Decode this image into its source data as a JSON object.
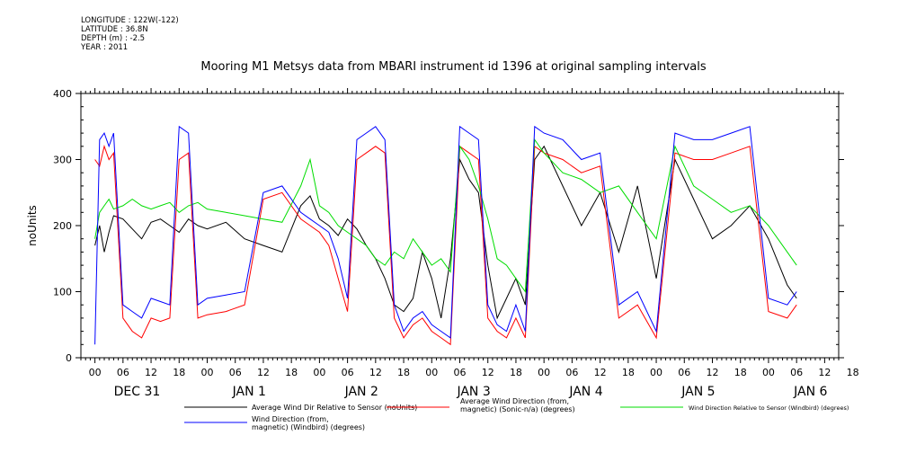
{
  "header": {
    "longitude": "LONGITUDE : 122W(-122)",
    "latitude": "LATITUDE : 36.8N",
    "depth": "DEPTH (m) : -2.5",
    "year": "YEAR : 2011"
  },
  "chart_data": {
    "type": "line",
    "title": "Mooring M1 Metsys data from MBARI instrument id 1396 at original sampling intervals",
    "ylabel": "noUnits",
    "ylim": [
      0,
      400
    ],
    "yticks": [
      0,
      100,
      200,
      300,
      400
    ],
    "x_hour_ticks": [
      "00",
      "06",
      "12",
      "18",
      "00",
      "06",
      "12",
      "18",
      "00",
      "06",
      "12",
      "18",
      "00",
      "06",
      "12",
      "18",
      "00",
      "06",
      "12",
      "18",
      "00",
      "06",
      "12",
      "18",
      "00",
      "06",
      "12",
      "18"
    ],
    "x_day_labels": [
      "DEC 31",
      "JAN 1",
      "JAN 2",
      "JAN 3",
      "JAN 4",
      "JAN 5",
      "JAN 6"
    ],
    "grid": false,
    "legend_position": "bottom",
    "series": [
      {
        "name": "Average Wind Dir Relative to Sensor (noUnits)",
        "color": "#000000",
        "x_hours": [
          0,
          1,
          2,
          3,
          4,
          6,
          8,
          10,
          12,
          14,
          16,
          18,
          20,
          22,
          24,
          28,
          32,
          36,
          40,
          44,
          46,
          48,
          50,
          52,
          54,
          56,
          58,
          60,
          62,
          64,
          66,
          68,
          70,
          72,
          74,
          76,
          78,
          80,
          82,
          84,
          86,
          88,
          90,
          92,
          94,
          96,
          100,
          104,
          108,
          112,
          116,
          120,
          124,
          128,
          132,
          136,
          140,
          144,
          148,
          150
        ],
        "values": [
          170,
          200,
          160,
          190,
          215,
          210,
          195,
          180,
          205,
          210,
          200,
          190,
          210,
          200,
          195,
          205,
          180,
          170,
          160,
          230,
          245,
          210,
          200,
          185,
          210,
          195,
          170,
          150,
          120,
          80,
          70,
          90,
          160,
          120,
          60,
          150,
          300,
          270,
          250,
          140,
          60,
          90,
          120,
          80,
          300,
          320,
          260,
          200,
          250,
          160,
          260,
          120,
          300,
          240,
          180,
          200,
          230,
          180,
          110,
          90
        ]
      },
      {
        "name": "Average Wind Direction (from, magnetic) (Sonic-n/a) (degrees)",
        "color": "#ff0000",
        "x_hours": [
          0,
          1,
          2,
          3,
          4,
          6,
          8,
          10,
          12,
          14,
          16,
          18,
          20,
          22,
          24,
          28,
          32,
          36,
          40,
          44,
          46,
          48,
          50,
          52,
          54,
          56,
          58,
          60,
          62,
          64,
          66,
          68,
          70,
          72,
          74,
          76,
          78,
          80,
          82,
          84,
          86,
          88,
          90,
          92,
          94,
          96,
          100,
          104,
          108,
          112,
          116,
          120,
          124,
          128,
          132,
          136,
          140,
          144,
          148,
          150
        ],
        "values": [
          300,
          290,
          320,
          300,
          310,
          60,
          40,
          30,
          60,
          55,
          60,
          300,
          310,
          60,
          65,
          70,
          80,
          240,
          250,
          210,
          200,
          190,
          170,
          120,
          70,
          300,
          310,
          320,
          310,
          60,
          30,
          50,
          60,
          40,
          30,
          20,
          320,
          310,
          300,
          60,
          40,
          30,
          60,
          30,
          320,
          310,
          300,
          280,
          290,
          60,
          80,
          30,
          310,
          300,
          300,
          310,
          320,
          70,
          60,
          80
        ]
      },
      {
        "name": "Wind Direction Relative to Sensor (Windbird) (degrees)",
        "color": "#00dd00",
        "x_hours": [
          0,
          1,
          2,
          3,
          4,
          6,
          8,
          10,
          12,
          14,
          16,
          18,
          20,
          22,
          24,
          28,
          32,
          36,
          40,
          44,
          46,
          48,
          50,
          52,
          54,
          56,
          58,
          60,
          62,
          64,
          66,
          68,
          70,
          72,
          74,
          76,
          78,
          80,
          82,
          84,
          86,
          88,
          90,
          92,
          94,
          96,
          100,
          104,
          108,
          112,
          116,
          120,
          124,
          128,
          132,
          136,
          140,
          144,
          148,
          150
        ],
        "values": [
          180,
          220,
          230,
          240,
          225,
          230,
          240,
          230,
          225,
          230,
          235,
          220,
          230,
          235,
          225,
          220,
          215,
          210,
          205,
          260,
          300,
          230,
          220,
          200,
          190,
          180,
          170,
          150,
          140,
          160,
          150,
          180,
          160,
          140,
          150,
          130,
          320,
          300,
          260,
          210,
          150,
          140,
          120,
          100,
          330,
          310,
          280,
          270,
          250,
          260,
          220,
          180,
          320,
          260,
          240,
          220,
          230,
          200,
          160,
          140
        ]
      },
      {
        "name": "Wind Direction (from, magnetic) (Windbird) (degrees)",
        "color": "#0000ff",
        "x_hours": [
          0,
          1,
          2,
          3,
          4,
          6,
          8,
          10,
          12,
          14,
          16,
          18,
          20,
          22,
          24,
          28,
          32,
          36,
          40,
          44,
          46,
          48,
          50,
          52,
          54,
          56,
          58,
          60,
          62,
          64,
          66,
          68,
          70,
          72,
          74,
          76,
          78,
          80,
          82,
          84,
          86,
          88,
          90,
          92,
          94,
          96,
          100,
          104,
          108,
          112,
          116,
          120,
          124,
          128,
          132,
          136,
          140,
          144,
          148,
          150
        ],
        "values": [
          20,
          330,
          340,
          320,
          340,
          80,
          70,
          60,
          90,
          85,
          80,
          350,
          340,
          80,
          90,
          95,
          100,
          250,
          260,
          220,
          210,
          200,
          190,
          150,
          90,
          330,
          340,
          350,
          330,
          80,
          40,
          60,
          70,
          50,
          40,
          30,
          350,
          340,
          330,
          80,
          50,
          40,
          80,
          40,
          350,
          340,
          330,
          300,
          310,
          80,
          100,
          40,
          340,
          330,
          330,
          340,
          350,
          90,
          80,
          100
        ]
      }
    ]
  }
}
